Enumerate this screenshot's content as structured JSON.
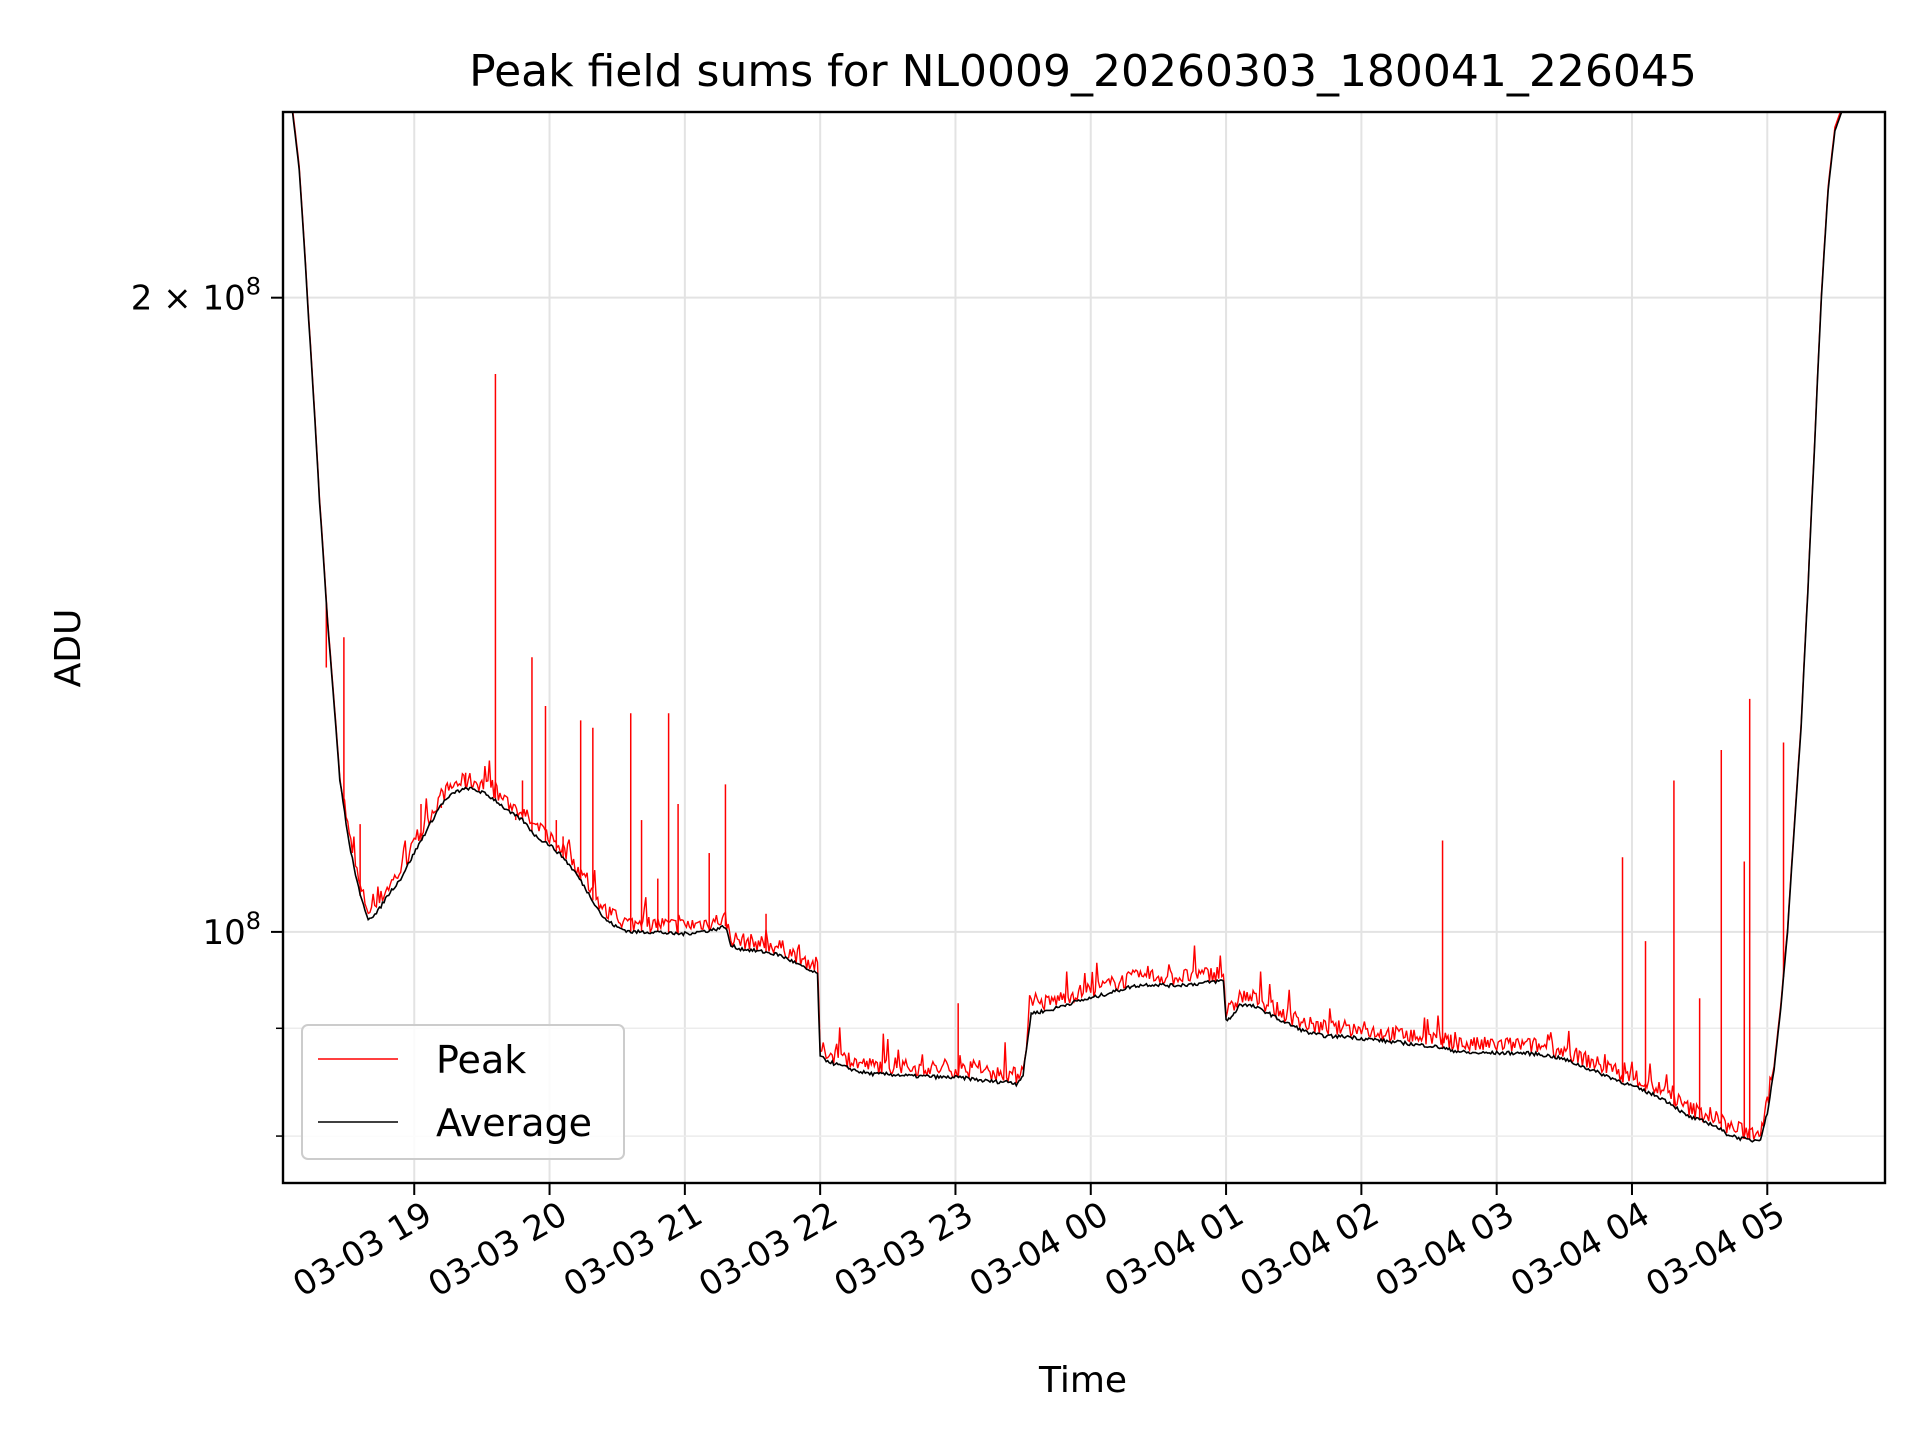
{
  "chart_data": {
    "type": "line",
    "title": "Peak field sums for NL0009_20260303_180041_226045",
    "xlabel": "Time",
    "ylabel": "ADU",
    "yscale": "log",
    "ylim": [
      76000000,
      245000000
    ],
    "xlim_hours": [
      18.03,
      29.87
    ],
    "grid": true,
    "x_tick_labels": [
      {
        "hour": 19,
        "label": "03-03 19"
      },
      {
        "hour": 20,
        "label": "03-03 20"
      },
      {
        "hour": 21,
        "label": "03-03 21"
      },
      {
        "hour": 22,
        "label": "03-03 22"
      },
      {
        "hour": 23,
        "label": "03-03 23"
      },
      {
        "hour": 24,
        "label": "03-04 00"
      },
      {
        "hour": 25,
        "label": "03-04 01"
      },
      {
        "hour": 26,
        "label": "03-04 02"
      },
      {
        "hour": 27,
        "label": "03-04 03"
      },
      {
        "hour": 28,
        "label": "03-04 04"
      },
      {
        "hour": 29,
        "label": "03-04 05"
      }
    ],
    "y_tick_labels": [
      {
        "value": 100000000,
        "base": "10",
        "exp": "8",
        "coef": ""
      },
      {
        "value": 200000000,
        "base": "10",
        "exp": "8",
        "coef": "2 × "
      }
    ],
    "y_minor_ticks": [
      80000000,
      90000000
    ],
    "legend": {
      "placement": "lower-left",
      "entries": [
        "Peak",
        "Average"
      ]
    },
    "series": [
      {
        "name": "Average",
        "color": "#000000",
        "points": [
          [
            18.1,
            245
          ],
          [
            18.15,
            230
          ],
          [
            18.22,
            195
          ],
          [
            18.3,
            160
          ],
          [
            18.36,
            140
          ],
          [
            18.4,
            130
          ],
          [
            18.45,
            118
          ],
          [
            18.52,
            110
          ],
          [
            18.6,
            104
          ],
          [
            18.66,
            101.5
          ],
          [
            18.72,
            102
          ],
          [
            18.8,
            104
          ],
          [
            18.9,
            106
          ],
          [
            19.0,
            109
          ],
          [
            19.1,
            112
          ],
          [
            19.2,
            115
          ],
          [
            19.3,
            116.5
          ],
          [
            19.4,
            117
          ],
          [
            19.5,
            116.5
          ],
          [
            19.6,
            115.5
          ],
          [
            19.7,
            114
          ],
          [
            19.8,
            113
          ],
          [
            19.9,
            111
          ],
          [
            20.0,
            110
          ],
          [
            20.1,
            108.5
          ],
          [
            20.2,
            106.5
          ],
          [
            20.3,
            104
          ],
          [
            20.4,
            101.5
          ],
          [
            20.5,
            100.5
          ],
          [
            20.6,
            100
          ],
          [
            20.7,
            100
          ],
          [
            20.8,
            100
          ],
          [
            20.9,
            99.8
          ],
          [
            21.0,
            99.8
          ],
          [
            21.1,
            100
          ],
          [
            21.2,
            100.2
          ],
          [
            21.3,
            100.6
          ],
          [
            21.34,
            98.5
          ],
          [
            21.4,
            98.2
          ],
          [
            21.5,
            98
          ],
          [
            21.6,
            97.8
          ],
          [
            21.7,
            97.5
          ],
          [
            21.8,
            96.8
          ],
          [
            21.9,
            96
          ],
          [
            21.98,
            95.5
          ],
          [
            22.0,
            87.2
          ],
          [
            22.1,
            86.6
          ],
          [
            22.2,
            86.2
          ],
          [
            22.3,
            85.8
          ],
          [
            22.4,
            85.6
          ],
          [
            22.5,
            85.6
          ],
          [
            22.6,
            85.5
          ],
          [
            22.7,
            85.4
          ],
          [
            22.8,
            85.4
          ],
          [
            22.9,
            85.3
          ],
          [
            23.0,
            85.3
          ],
          [
            23.1,
            85.2
          ],
          [
            23.2,
            85
          ],
          [
            23.3,
            84.9
          ],
          [
            23.4,
            84.9
          ],
          [
            23.45,
            84.7
          ],
          [
            23.5,
            85.5
          ],
          [
            23.56,
            91.5
          ],
          [
            23.7,
            91.8
          ],
          [
            23.8,
            92.3
          ],
          [
            23.9,
            92.7
          ],
          [
            24.0,
            93
          ],
          [
            24.1,
            93.4
          ],
          [
            24.2,
            93.8
          ],
          [
            24.3,
            94.2
          ],
          [
            24.4,
            94.4
          ],
          [
            24.5,
            94.4
          ],
          [
            24.6,
            94.3
          ],
          [
            24.7,
            94.4
          ],
          [
            24.8,
            94.5
          ],
          [
            24.9,
            94.7
          ],
          [
            24.98,
            94.8
          ],
          [
            25.0,
            90.8
          ],
          [
            25.05,
            91.2
          ],
          [
            25.1,
            92.4
          ],
          [
            25.2,
            92.2
          ],
          [
            25.3,
            91.6
          ],
          [
            25.4,
            90.8
          ],
          [
            25.5,
            90.2
          ],
          [
            25.6,
            89.6
          ],
          [
            25.7,
            89.3
          ],
          [
            25.8,
            89.2
          ],
          [
            25.9,
            89.2
          ],
          [
            26.0,
            89
          ],
          [
            26.1,
            88.9
          ],
          [
            26.2,
            88.7
          ],
          [
            26.3,
            88.6
          ],
          [
            26.4,
            88.4
          ],
          [
            26.5,
            88.3
          ],
          [
            26.6,
            88.1
          ],
          [
            26.65,
            87.9
          ],
          [
            26.8,
            87.6
          ],
          [
            26.9,
            87.6
          ],
          [
            27.0,
            87.6
          ],
          [
            27.1,
            87.6
          ],
          [
            27.2,
            87.6
          ],
          [
            27.3,
            87.5
          ],
          [
            27.4,
            87.3
          ],
          [
            27.5,
            87
          ],
          [
            27.6,
            86.5
          ],
          [
            27.7,
            86
          ],
          [
            27.8,
            85.5
          ],
          [
            27.9,
            85
          ],
          [
            28.0,
            84.5
          ],
          [
            28.1,
            84
          ],
          [
            28.2,
            83.5
          ],
          [
            28.3,
            82.8
          ],
          [
            28.4,
            81.8
          ],
          [
            28.5,
            81.4
          ],
          [
            28.6,
            81
          ],
          [
            28.7,
            80.2
          ],
          [
            28.8,
            79.8
          ],
          [
            28.9,
            79.6
          ],
          [
            28.95,
            79.8
          ],
          [
            29.0,
            82
          ],
          [
            29.05,
            86
          ],
          [
            29.1,
            92
          ],
          [
            29.15,
            100
          ],
          [
            29.2,
            112
          ],
          [
            29.25,
            125
          ],
          [
            29.3,
            145
          ],
          [
            29.35,
            170
          ],
          [
            29.4,
            200
          ],
          [
            29.45,
            225
          ],
          [
            29.5,
            240
          ],
          [
            29.55,
            245
          ]
        ]
      },
      {
        "name": "Peak",
        "color": "#ff0000",
        "spikes": [
          [
            18.35,
            133.5
          ],
          [
            18.48,
            138
          ],
          [
            18.6,
            112.5
          ],
          [
            19.05,
            115
          ],
          [
            19.2,
            114.5
          ],
          [
            19.38,
            119
          ],
          [
            19.6,
            184
          ],
          [
            19.75,
            113
          ],
          [
            19.8,
            118
          ],
          [
            19.87,
            135
          ],
          [
            19.97,
            128
          ],
          [
            20.05,
            113
          ],
          [
            20.1,
            111
          ],
          [
            20.23,
            126
          ],
          [
            20.32,
            125
          ],
          [
            20.6,
            127
          ],
          [
            20.68,
            113
          ],
          [
            20.8,
            106
          ],
          [
            20.88,
            127
          ],
          [
            20.95,
            115
          ],
          [
            21.18,
            109
          ],
          [
            21.3,
            117.5
          ],
          [
            21.6,
            102
          ],
          [
            23.02,
            92.5
          ],
          [
            26.6,
            110.5
          ],
          [
            27.93,
            108.5
          ],
          [
            28.1,
            99
          ],
          [
            28.31,
            118
          ],
          [
            28.5,
            93
          ],
          [
            28.66,
            122
          ],
          [
            28.83,
            108
          ],
          [
            28.87,
            129
          ],
          [
            29.12,
            123
          ]
        ]
      }
    ]
  }
}
